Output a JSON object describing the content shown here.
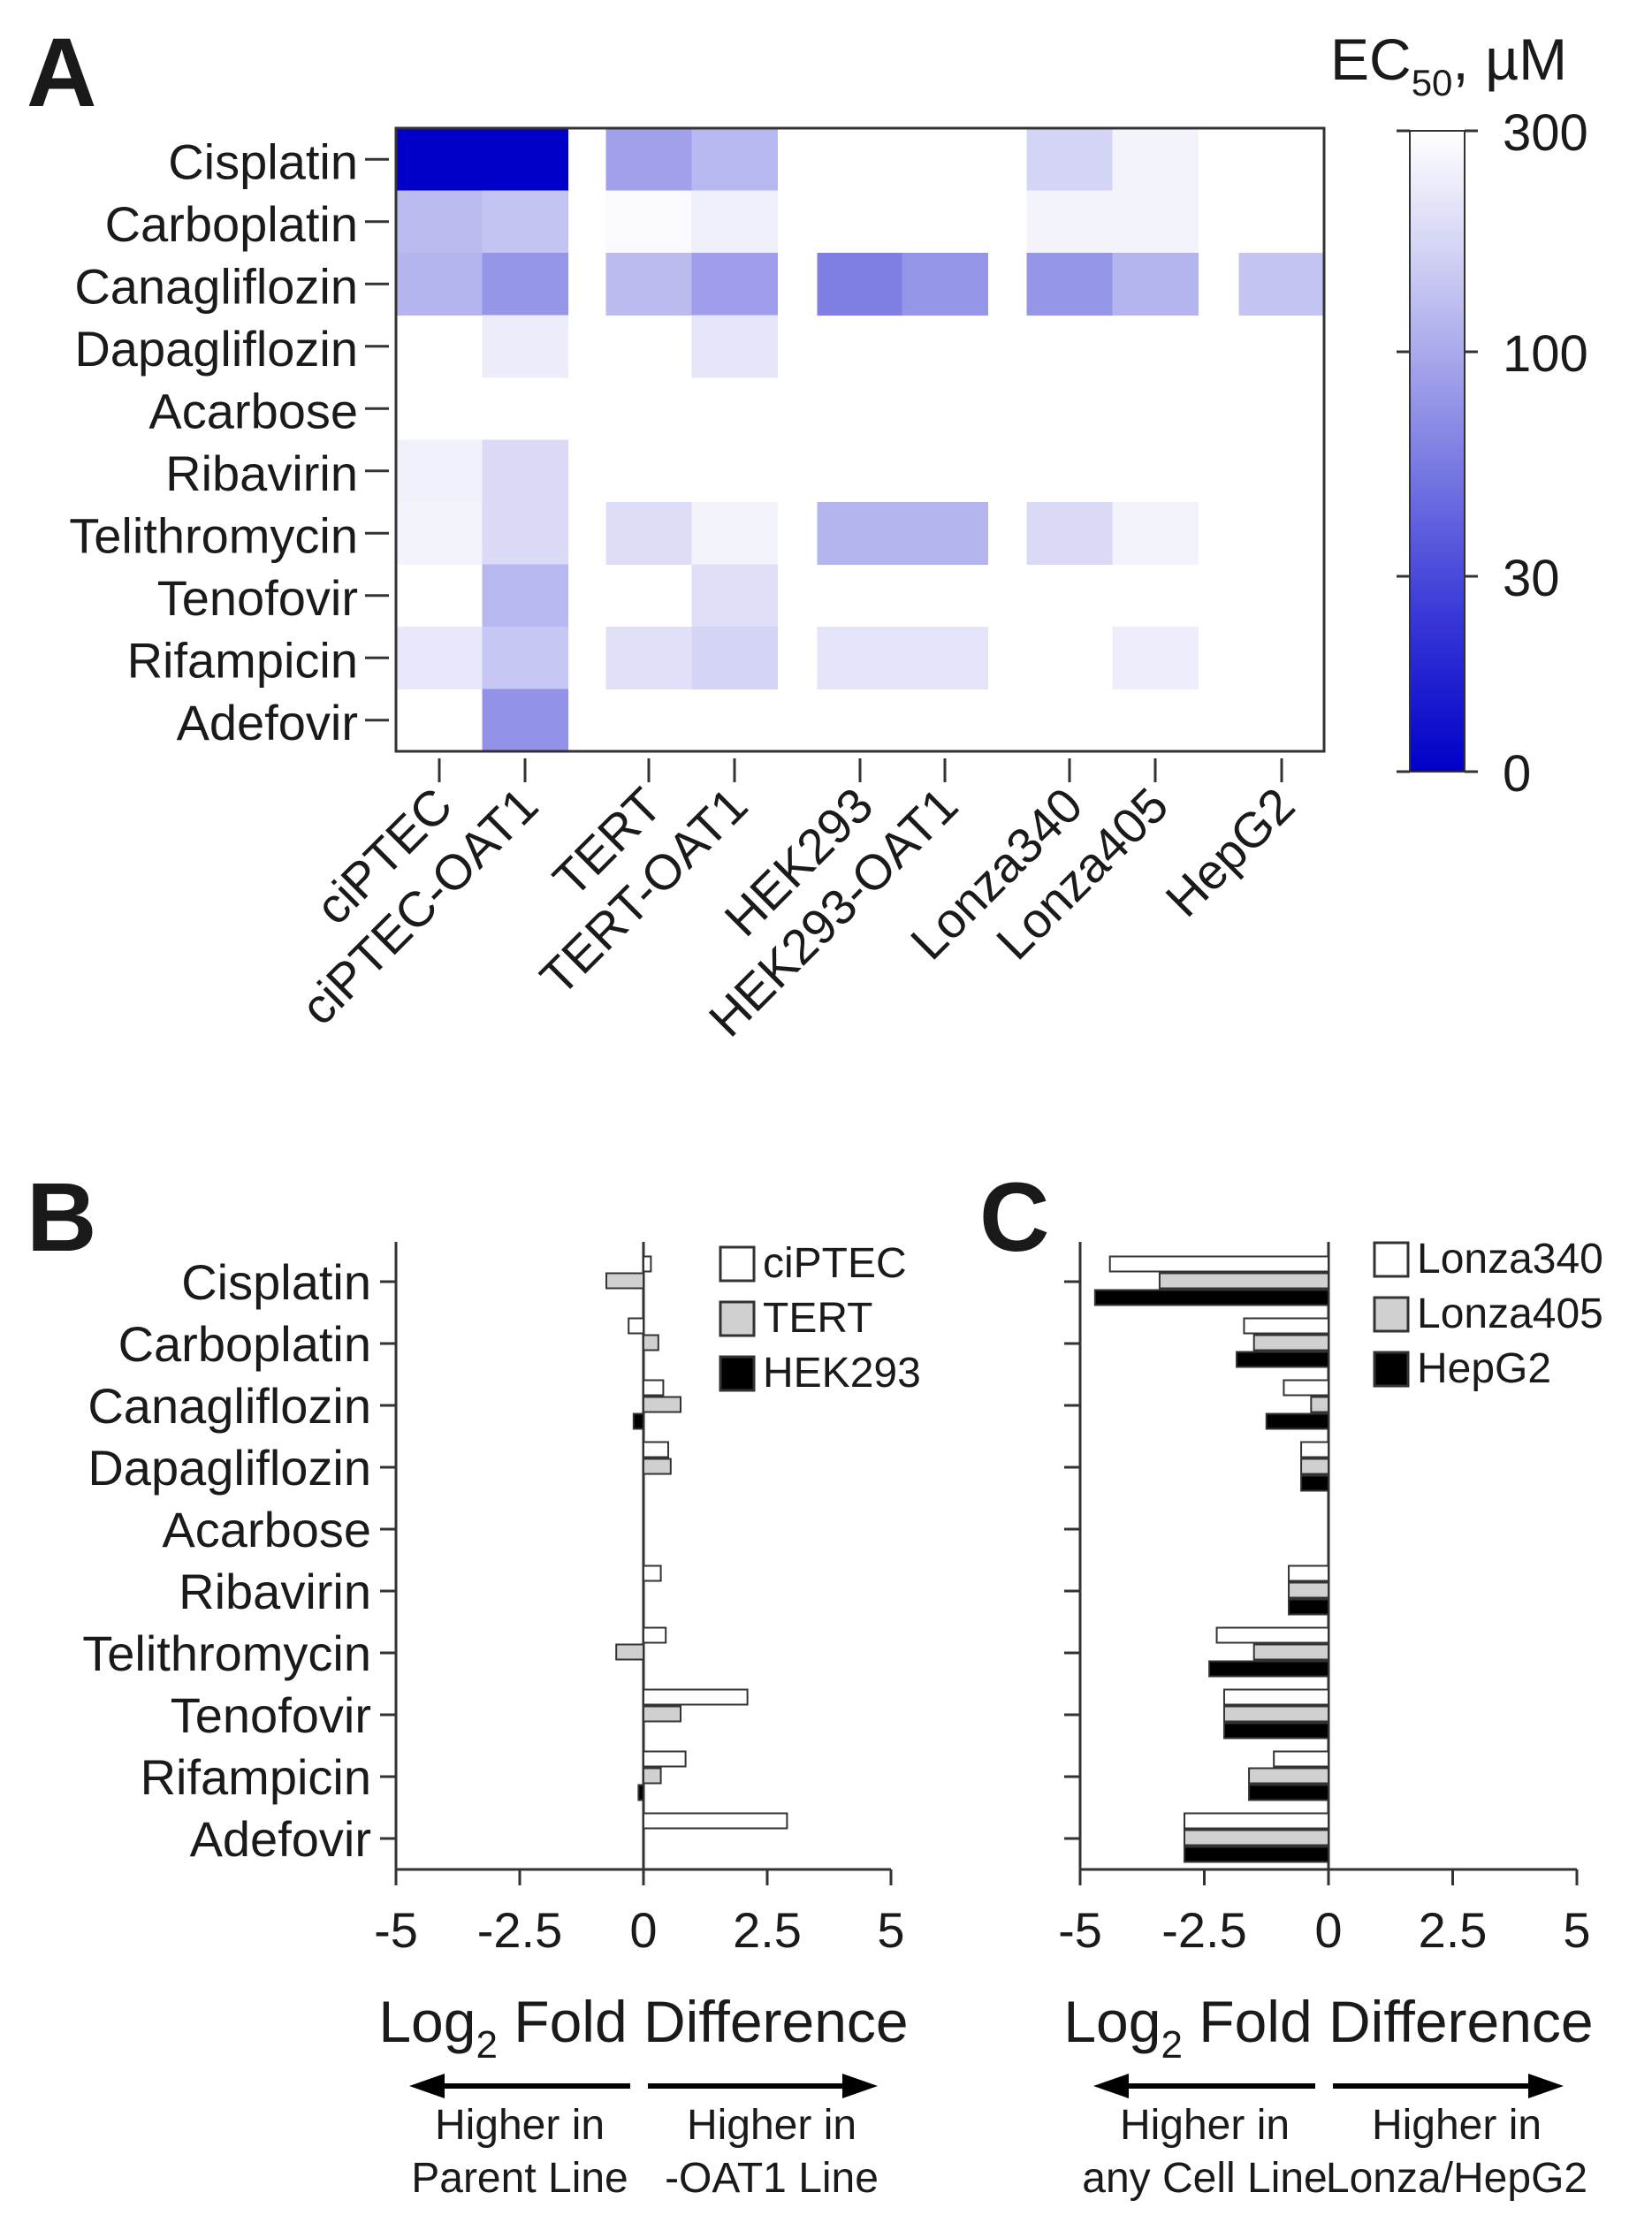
{
  "chart_data": [
    {
      "type": "heatmap",
      "panel_label": "A",
      "rows": [
        "Cisplatin",
        "Carboplatin",
        "Canagliflozin",
        "Dapagliflozin",
        "Acarbose",
        "Ribavirin",
        "Telithromycin",
        "Tenofovir",
        "Rifampicin",
        "Adefovir"
      ],
      "columns": [
        "ciPTEC",
        "ciPTEC-OAT1",
        "TERT",
        "TERT-OAT1",
        "HEK293",
        "HEK293-OAT1",
        "Lonza340",
        "Lonza405",
        "HepG2"
      ],
      "values": [
        [
          0,
          0,
          35,
          60,
          null,
          null,
          115,
          230,
          null
        ],
        [
          65,
          80,
          260,
          210,
          null,
          null,
          230,
          230,
          null
        ],
        [
          55,
          28,
          65,
          33,
          16,
          28,
          28,
          55,
          80
        ],
        [
          null,
          195,
          null,
          170,
          null,
          null,
          null,
          null,
          null
        ],
        [
          null,
          null,
          null,
          null,
          null,
          null,
          null,
          null,
          null
        ],
        [
          220,
          130,
          null,
          null,
          null,
          null,
          null,
          null,
          null
        ],
        [
          230,
          130,
          140,
          230,
          55,
          55,
          130,
          230,
          null
        ],
        [
          null,
          60,
          null,
          145,
          null,
          null,
          null,
          null,
          null
        ],
        [
          180,
          85,
          150,
          115,
          160,
          160,
          null,
          200,
          null
        ],
        [
          null,
          25,
          null,
          null,
          null,
          null,
          null,
          null,
          null
        ]
      ],
      "colorbar": {
        "title_main": "EC",
        "title_sub": "50",
        "title_unit": ", µM",
        "ticks": [
          "300",
          "100",
          "30",
          "0"
        ],
        "tick_values": [
          300,
          100,
          30,
          0
        ],
        "color_low": "#0000c8",
        "color_high": "#ffffff",
        "scale": "log"
      }
    },
    {
      "type": "bar",
      "orientation": "horizontal",
      "panel_label": "B",
      "categories": [
        "Cisplatin",
        "Carboplatin",
        "Canagliflozin",
        "Dapagliflozin",
        "Acarbose",
        "Ribavirin",
        "Telithromycin",
        "Tenofovir",
        "Rifampicin",
        "Adefovir"
      ],
      "series": [
        {
          "name": "ciPTEC",
          "color": "#ffffff",
          "values": [
            0.15,
            -0.3,
            0.4,
            0.5,
            0,
            0.35,
            0.45,
            2.1,
            0.85,
            2.9
          ]
        },
        {
          "name": "TERT",
          "color": "#d0d0d0",
          "values": [
            -0.75,
            0.3,
            0.75,
            0.55,
            0,
            0,
            -0.55,
            0.75,
            0.35,
            0
          ]
        },
        {
          "name": "HEK293",
          "color": "#000000",
          "values": [
            0,
            0,
            -0.2,
            0,
            0,
            0,
            0,
            0,
            -0.1,
            0
          ]
        }
      ],
      "xlim": [
        -5,
        5
      ],
      "xticks": [
        "-5",
        "-2.5",
        "0",
        "2.5",
        "5"
      ],
      "xlabel_main": "Log",
      "xlabel_sub": "2",
      "xlabel_rest": " Fold Difference",
      "arrow_left": [
        "Higher in",
        "Parent Line"
      ],
      "arrow_right": [
        "Higher in",
        "-OAT1 Line"
      ],
      "legend_position": "top-right"
    },
    {
      "type": "bar",
      "orientation": "horizontal",
      "panel_label": "C",
      "categories": [
        "Cisplatin",
        "Carboplatin",
        "Canagliflozin",
        "Dapagliflozin",
        "Acarbose",
        "Ribavirin",
        "Telithromycin",
        "Tenofovir",
        "Rifampicin",
        "Adefovir"
      ],
      "series": [
        {
          "name": "Lonza340",
          "color": "#ffffff",
          "values": [
            -4.4,
            -1.7,
            -0.9,
            -0.55,
            0,
            -0.8,
            -2.25,
            -2.1,
            -1.1,
            -2.9
          ]
        },
        {
          "name": "Lonza405",
          "color": "#d0d0d0",
          "values": [
            -3.4,
            -1.5,
            -0.35,
            -0.55,
            0,
            -0.8,
            -1.5,
            -2.1,
            -1.6,
            -2.9
          ]
        },
        {
          "name": "HepG2",
          "color": "#000000",
          "values": [
            -4.7,
            -1.85,
            -1.25,
            -0.55,
            0,
            -0.8,
            -2.4,
            -2.1,
            -1.6,
            -2.9
          ]
        }
      ],
      "xlim": [
        -5,
        5
      ],
      "xticks": [
        "-5",
        "-2.5",
        "0",
        "2.5",
        "5"
      ],
      "xlabel_main": "Log",
      "xlabel_sub": "2",
      "xlabel_rest": " Fold Difference",
      "arrow_left": [
        "Higher in",
        "any Cell Line"
      ],
      "arrow_right": [
        "Higher in",
        "Lonza/HepG2"
      ],
      "legend_position": "top-right"
    }
  ]
}
